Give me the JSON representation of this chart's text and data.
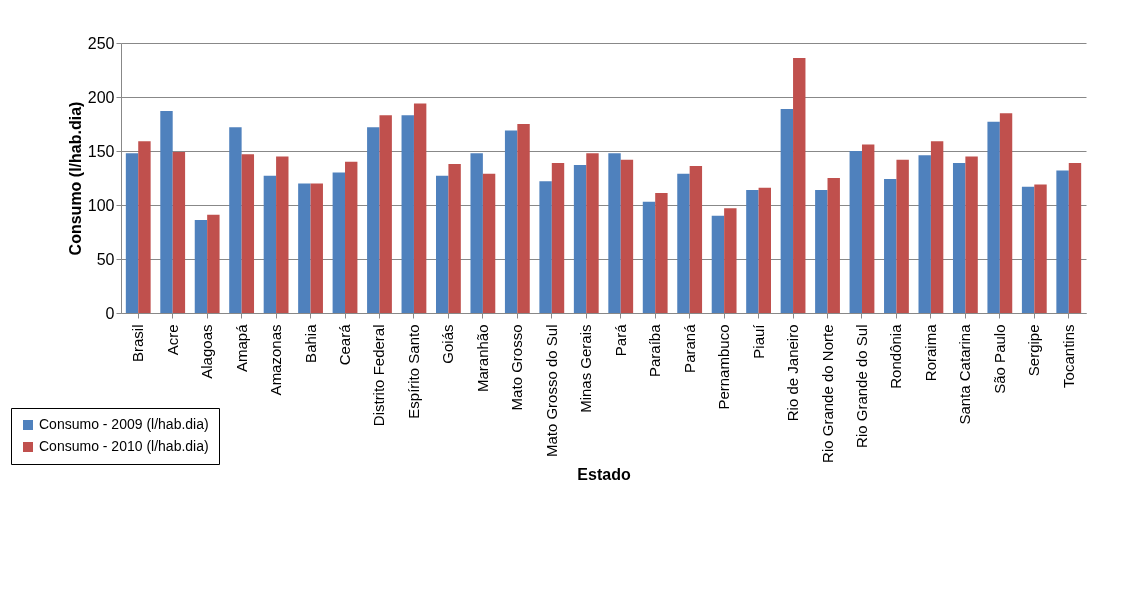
{
  "chart_data": {
    "type": "bar",
    "xlabel": "Estado",
    "ylabel": "Consumo (l/hab.dia)",
    "categories": [
      "Brasil",
      "Acre",
      "Alagoas",
      "Amapá",
      "Amazonas",
      "Bahia",
      "Ceará",
      "Distrito Federal",
      "Espírito Santo",
      "Goiás",
      "Maranhão",
      "Mato Grosso",
      "Mato Grosso do Sul",
      "Minas Gerais",
      "Pará",
      "Paraíba",
      "Paraná",
      "Pernambuco",
      "Piauí",
      "Rio de Janeiro",
      "Rio Grande do Norte",
      "Rio Grande do Sul",
      "Rondônia",
      "Roraima",
      "Santa Catarina",
      "São Paulo",
      "Sergipe",
      "Tocantins"
    ],
    "series": [
      {
        "name": "Consumo - 2009 (l/hab.dia)",
        "color": "#4f81bd",
        "values": [
          148,
          187,
          86,
          172,
          127,
          120,
          130,
          172,
          183,
          127,
          148,
          169,
          122,
          137,
          148,
          103,
          129,
          90,
          114,
          189,
          114,
          150,
          124,
          146,
          139,
          177,
          117,
          132
        ]
      },
      {
        "name": "Consumo - 2010 (l/hab.dia)",
        "color": "#c0504d",
        "values": [
          159,
          149,
          91,
          147,
          145,
          120,
          140,
          183,
          194,
          138,
          129,
          175,
          139,
          148,
          142,
          111,
          136,
          97,
          116,
          236,
          125,
          156,
          142,
          159,
          145,
          185,
          119,
          139
        ]
      }
    ],
    "ylim": [
      0,
      250
    ],
    "yticks": [
      0,
      50,
      100,
      150,
      200,
      250
    ],
    "grid": "y",
    "legend": "bottom left"
  }
}
